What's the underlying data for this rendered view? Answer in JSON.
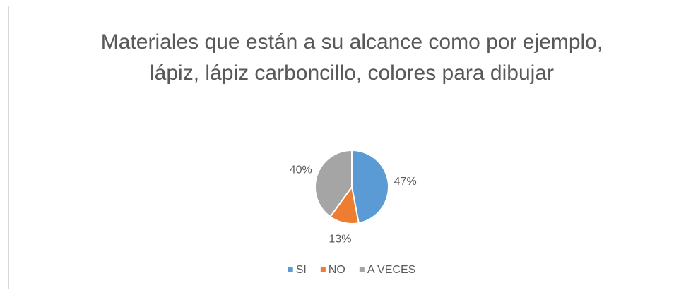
{
  "chart_data": {
    "type": "pie",
    "title": "Materiales que están a su alcance como por ejemplo, lápiz, lápiz carboncillo, colores para dibujar",
    "categories": [
      "SI",
      "NO",
      "A VECES"
    ],
    "values": [
      47,
      13,
      40
    ],
    "value_labels": [
      "47%",
      "13%",
      "40%"
    ],
    "colors": [
      "#5b9bd5",
      "#ed7d31",
      "#a5a5a5"
    ],
    "legend": "bottom"
  }
}
